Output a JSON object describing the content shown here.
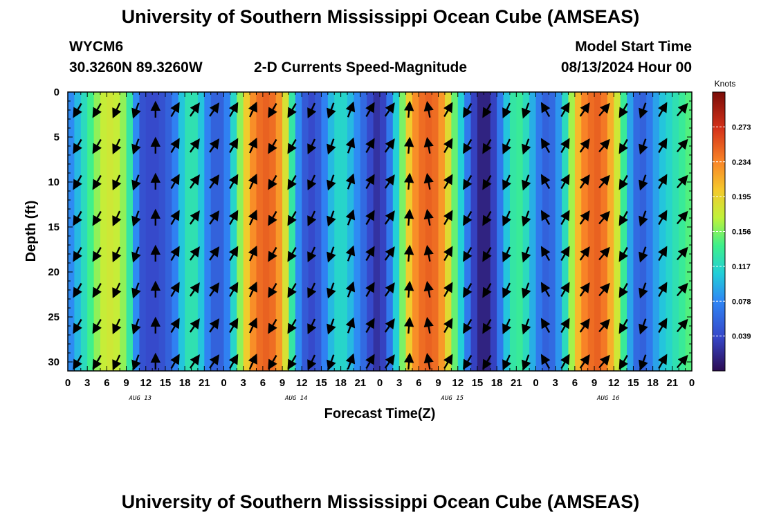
{
  "header": {
    "title": "University of Southern Mississippi Ocean Cube (AMSEAS)",
    "station": "WYCM6",
    "coords": "30.3260N  89.3260W",
    "plot_title": "2-D Currents Speed-Magnitude",
    "model_start_label": "Model Start Time",
    "model_start_value": "08/13/2024 Hour 00"
  },
  "footer": {
    "title": "University of Southern Mississippi Ocean Cube (AMSEAS)"
  },
  "chart_data": {
    "type": "heatmap",
    "title": "2-D Currents Speed-Magnitude",
    "xlabel": "Forecast Time(Z)",
    "ylabel": "Depth (ft)",
    "x_range_hours": [
      0,
      96
    ],
    "x_tick_labels": [
      "0",
      "3",
      "6",
      "9",
      "12",
      "15",
      "18",
      "21",
      "0",
      "3",
      "6",
      "9",
      "12",
      "15",
      "18",
      "21",
      "0",
      "3",
      "6",
      "9",
      "12",
      "15",
      "18",
      "21",
      "0",
      "3",
      "6",
      "9",
      "12",
      "15",
      "18",
      "21",
      "0"
    ],
    "date_labels": [
      "AUG 13",
      "AUG 14",
      "AUG 15",
      "AUG 16"
    ],
    "ylim": [
      0,
      31
    ],
    "y_ticks": [
      "0",
      "5",
      "10",
      "15",
      "20",
      "25",
      "30"
    ],
    "colorbar": {
      "label": "Knots",
      "range": [
        0,
        0.312
      ],
      "ticks": [
        "0.273",
        "0.234",
        "0.195",
        "0.156",
        "0.117",
        "0.078",
        "0.039"
      ]
    },
    "speed_profile_hours": [
      0,
      1,
      2,
      3,
      4,
      5,
      6,
      7,
      8,
      9,
      10,
      11,
      12,
      13,
      14,
      15,
      16,
      17,
      18,
      19,
      20,
      21,
      22,
      23,
      24,
      25,
      26,
      27,
      28,
      29,
      30,
      31,
      32,
      33,
      34,
      35,
      36,
      37,
      38,
      39,
      40,
      41,
      42,
      43,
      44,
      45,
      46,
      47,
      48,
      49,
      50,
      51,
      52,
      53,
      54,
      55,
      56,
      57,
      58,
      59,
      60,
      61,
      62,
      63,
      64,
      65,
      66,
      67,
      68,
      69,
      70,
      71,
      72,
      73,
      74,
      75,
      76,
      77,
      78,
      79,
      80,
      81,
      82,
      83,
      84,
      85,
      86,
      87,
      88,
      89,
      90,
      91,
      92,
      93,
      94,
      95,
      96
    ],
    "speed_knots": [
      0.07,
      0.09,
      0.11,
      0.13,
      0.15,
      0.17,
      0.18,
      0.18,
      0.17,
      0.15,
      0.11,
      0.05,
      0.04,
      0.04,
      0.04,
      0.05,
      0.06,
      0.09,
      0.12,
      0.13,
      0.12,
      0.09,
      0.06,
      0.05,
      0.06,
      0.09,
      0.14,
      0.18,
      0.22,
      0.24,
      0.25,
      0.25,
      0.24,
      0.21,
      0.16,
      0.1,
      0.06,
      0.04,
      0.04,
      0.06,
      0.09,
      0.11,
      0.12,
      0.11,
      0.09,
      0.07,
      0.05,
      0.03,
      0.02,
      0.05,
      0.09,
      0.13,
      0.18,
      0.22,
      0.24,
      0.25,
      0.25,
      0.24,
      0.21,
      0.17,
      0.13,
      0.09,
      0.05,
      0.02,
      0.01,
      0.02,
      0.05,
      0.09,
      0.12,
      0.14,
      0.13,
      0.11,
      0.08,
      0.06,
      0.05,
      0.07,
      0.1,
      0.14,
      0.19,
      0.23,
      0.24,
      0.25,
      0.25,
      0.23,
      0.2,
      0.16,
      0.11,
      0.07,
      0.05,
      0.06,
      0.08,
      0.1,
      0.11,
      0.12,
      0.13,
      0.14,
      0.15
    ],
    "arrow_hours": [
      1.5,
      4.5,
      7.5,
      10.5,
      13.5,
      16.5,
      19.5,
      22.5,
      25.5,
      28.5,
      31.5,
      34.5,
      37.5,
      40.5,
      43.5,
      46.5,
      49.5,
      52.5,
      55.5,
      58.5,
      61.5,
      64.5,
      67.5,
      70.5,
      73.5,
      76.5,
      79.5,
      82.5,
      85.5,
      88.5,
      91.5,
      94.5
    ],
    "arrow_depths_ft": [
      2,
      6,
      10,
      14,
      18,
      22,
      26,
      30
    ],
    "arrow_direction_deg": [
      210,
      210,
      205,
      200,
      0,
      30,
      35,
      35,
      30,
      25,
      210,
      210,
      205,
      200,
      20,
      30,
      35,
      5,
      350,
      30,
      210,
      210,
      205,
      200,
      330,
      30,
      35,
      40,
      210,
      200,
      30,
      40
    ]
  }
}
